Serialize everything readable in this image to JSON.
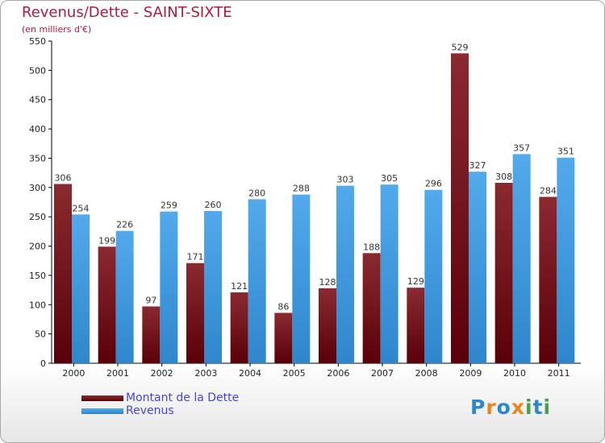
{
  "header": {
    "title": "Revenus/Dette - SAINT-SIXTE",
    "subtitle": "(en milliers d'€)"
  },
  "colors": {
    "dette": "#7a1a22",
    "revenus": "#4aa3e6",
    "title": "#b2193d",
    "legend_text": "#4444dd"
  },
  "logo": {
    "letters": [
      "P",
      "r",
      "o",
      "x",
      "i",
      "t",
      "i"
    ],
    "letter_colors": [
      "#2c86d0",
      "#e8861f",
      "#2c86d0",
      "#e8861f",
      "#4aa04a",
      "#2c86d0",
      "#4aa04a"
    ]
  },
  "chart_data": {
    "type": "bar",
    "title": "Revenus/Dette - SAINT-SIXTE",
    "subtitle": "(en milliers d'€)",
    "categories": [
      "2000",
      "2001",
      "2002",
      "2003",
      "2004",
      "2005",
      "2006",
      "2007",
      "2008",
      "2009",
      "2010",
      "2011"
    ],
    "series": [
      {
        "name": "Montant de la Dette",
        "values": [
          306,
          199,
          97,
          171,
          121,
          86,
          128,
          188,
          129,
          529,
          308,
          284
        ]
      },
      {
        "name": "Revenus",
        "values": [
          254,
          226,
          259,
          260,
          280,
          288,
          303,
          305,
          296,
          327,
          357,
          351
        ]
      }
    ],
    "ylim": [
      0,
      550
    ],
    "yticks": [
      0,
      50,
      100,
      150,
      200,
      250,
      300,
      350,
      400,
      450,
      500,
      550
    ],
    "grid": false,
    "legend": "bottom-left"
  }
}
